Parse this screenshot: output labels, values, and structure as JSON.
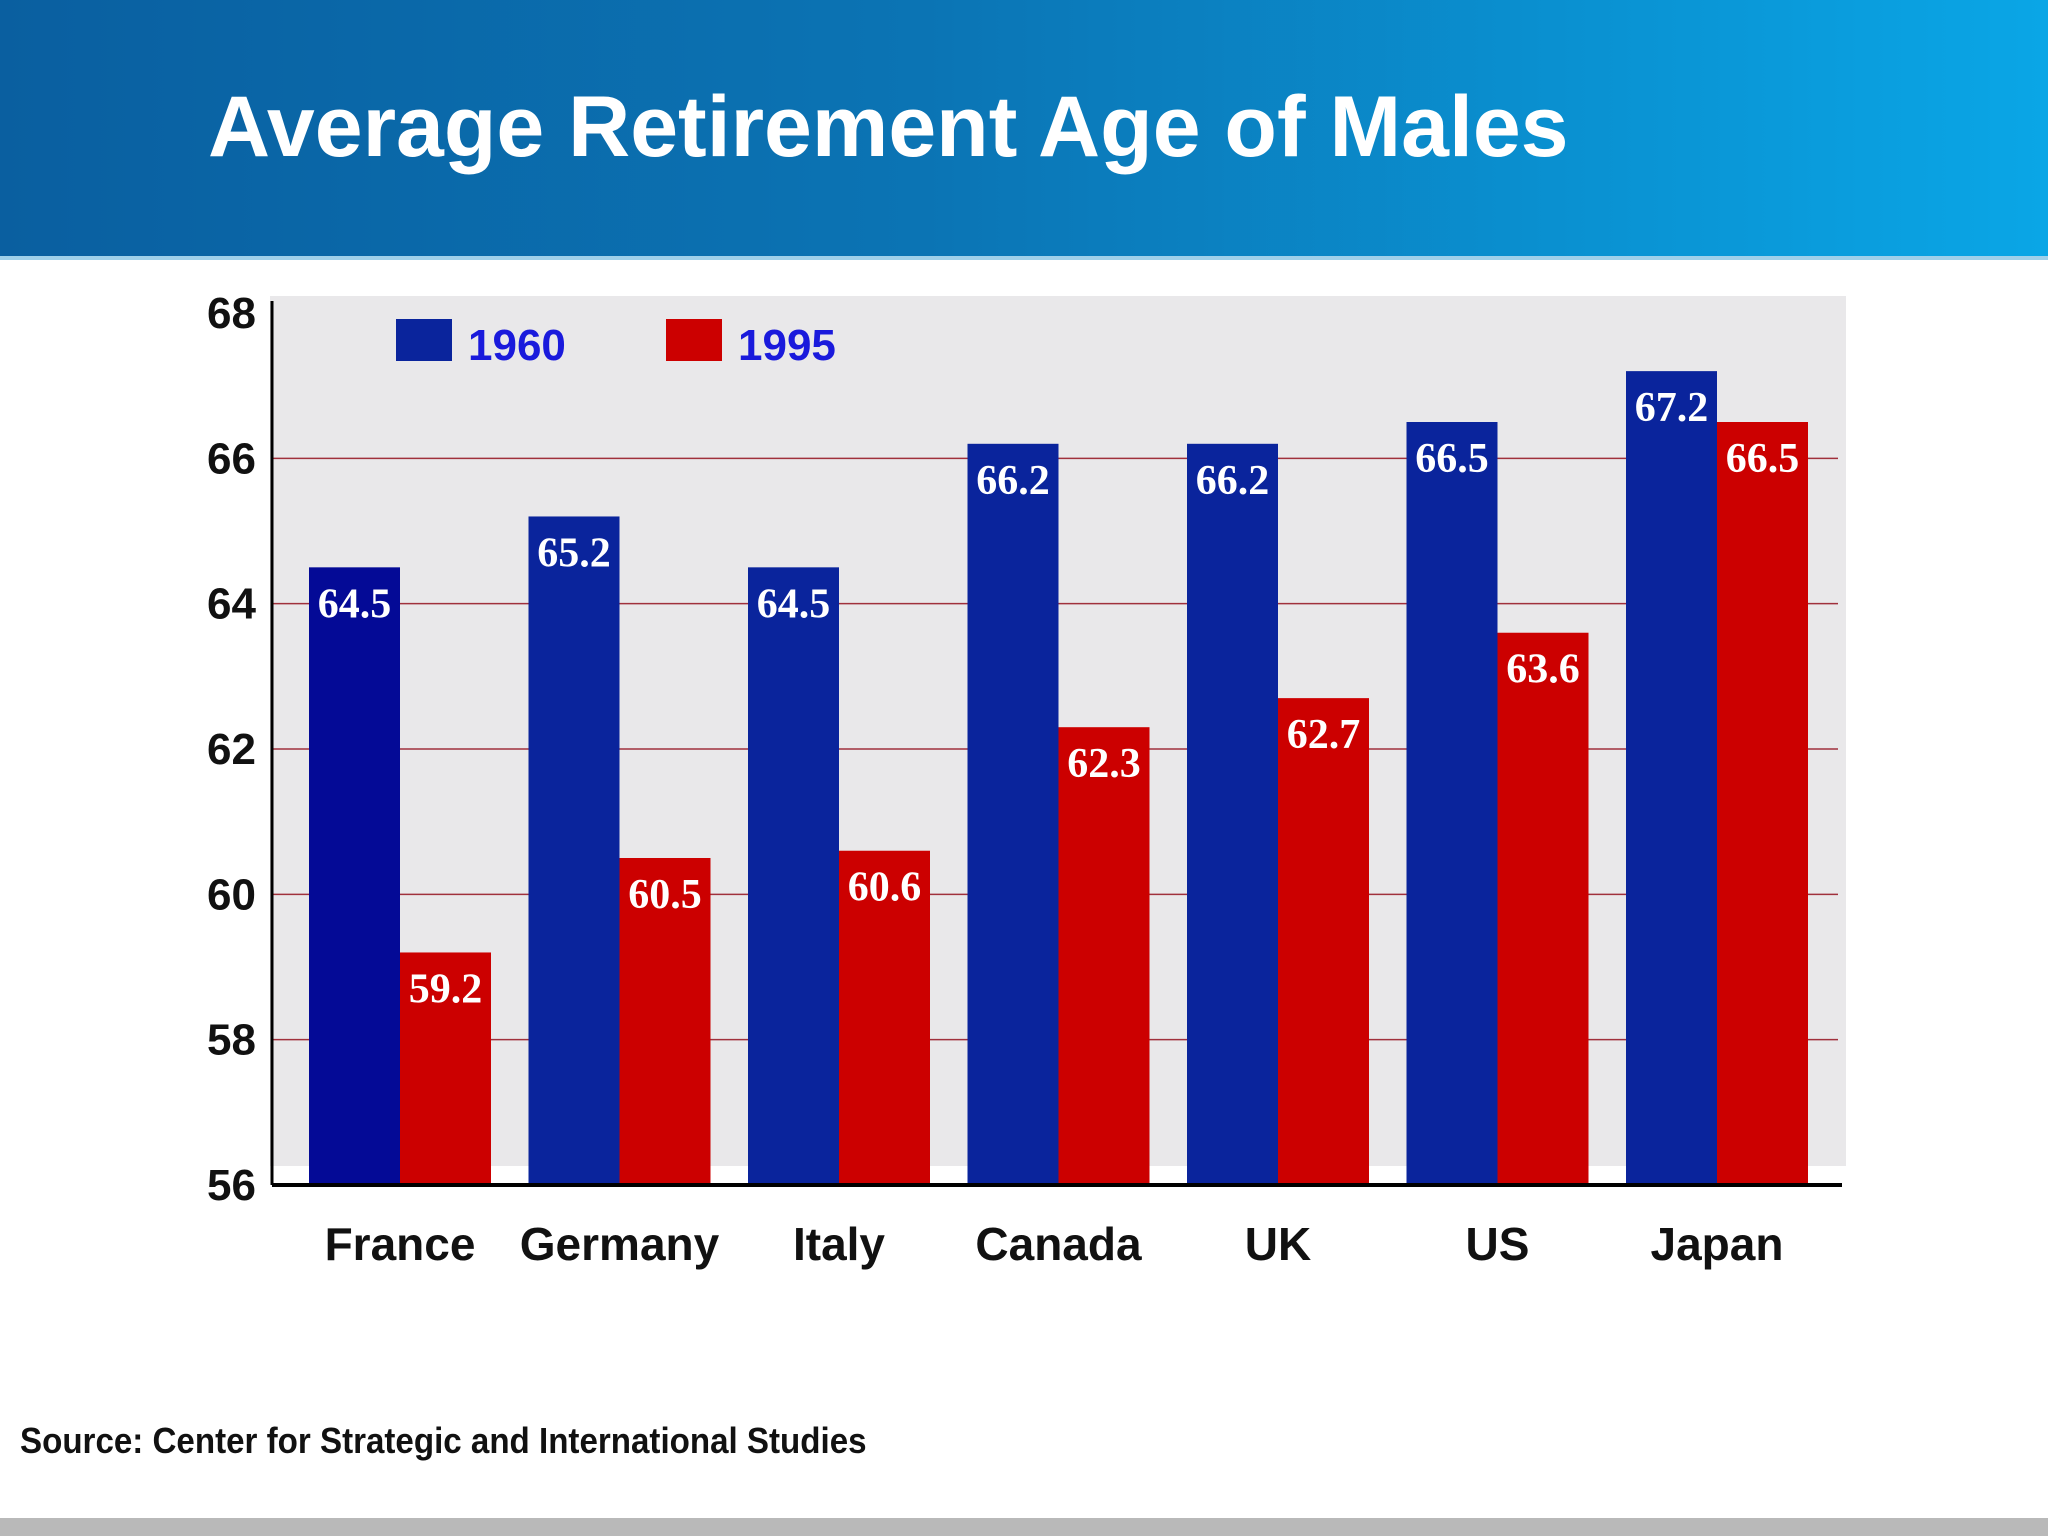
{
  "header": {
    "title": "Average Retirement Age of Males"
  },
  "source": "Source: Center for Strategic and International Studies",
  "colors": {
    "series_1960": "#0a249c",
    "series_1995": "#cc0000",
    "plot_bg": "#e9e8ea",
    "grid": "#a0303c",
    "legend_text": "#1a1adc"
  },
  "chart_data": {
    "type": "bar",
    "title": "Average Retirement Age of Males",
    "categories": [
      "France",
      "Germany",
      "Italy",
      "Canada",
      "UK",
      "US",
      "Japan"
    ],
    "series": [
      {
        "name": "1960",
        "values": [
          64.5,
          65.2,
          64.5,
          66.2,
          66.2,
          66.5,
          67.2
        ],
        "labels": [
          "64.5",
          "65.2",
          "64.5",
          "66.2",
          "66.2",
          "66.5",
          "67.2"
        ]
      },
      {
        "name": "1995",
        "values": [
          59.2,
          60.5,
          60.6,
          62.3,
          62.7,
          63.6,
          66.5
        ],
        "labels": [
          "59.2",
          "60.5",
          "60.6",
          "62.3",
          "62.7",
          "63.6",
          "66.5"
        ]
      }
    ],
    "ylim": [
      56,
      68
    ],
    "yticks": [
      "56",
      "58",
      "60",
      "62",
      "64",
      "66",
      "68"
    ],
    "grid": true,
    "legend": "top-left"
  }
}
